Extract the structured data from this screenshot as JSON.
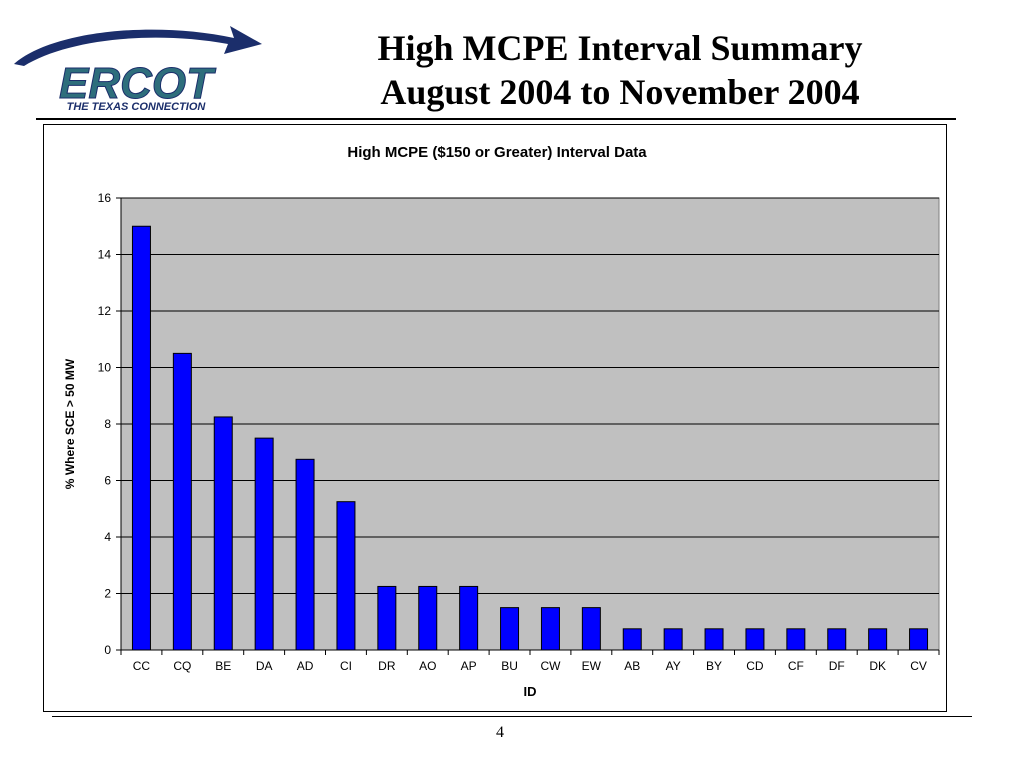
{
  "slide": {
    "title_line1": "High MCPE Interval Summary",
    "title_line2": "August 2004 to November 2004",
    "page_number": "4"
  },
  "logo": {
    "wordmark": "ERCOT",
    "tagline": "THE TEXAS CONNECTION"
  },
  "colors": {
    "bar_fill": "#0000FF",
    "plot_background": "#C0C0C0",
    "logo_text": "#2E6E7C",
    "logo_arc": "#1B2E6B"
  },
  "chart_data": {
    "type": "bar",
    "title": "High MCPE ($150 or Greater) Interval Data",
    "xlabel": "ID",
    "ylabel": "% Where SCE > 50 MW",
    "ylim": [
      0,
      16
    ],
    "yticks": [
      0,
      2,
      4,
      6,
      8,
      10,
      12,
      14,
      16
    ],
    "grid": true,
    "categories": [
      "CC",
      "CQ",
      "BE",
      "DA",
      "AD",
      "CI",
      "DR",
      "AO",
      "AP",
      "BU",
      "CW",
      "EW",
      "AB",
      "AY",
      "BY",
      "CD",
      "CF",
      "DF",
      "DK",
      "CV"
    ],
    "values": [
      15.0,
      10.5,
      8.25,
      7.5,
      6.75,
      5.25,
      2.25,
      2.25,
      2.25,
      1.5,
      1.5,
      1.5,
      0.75,
      0.75,
      0.75,
      0.75,
      0.75,
      0.75,
      0.75,
      0.75
    ]
  }
}
